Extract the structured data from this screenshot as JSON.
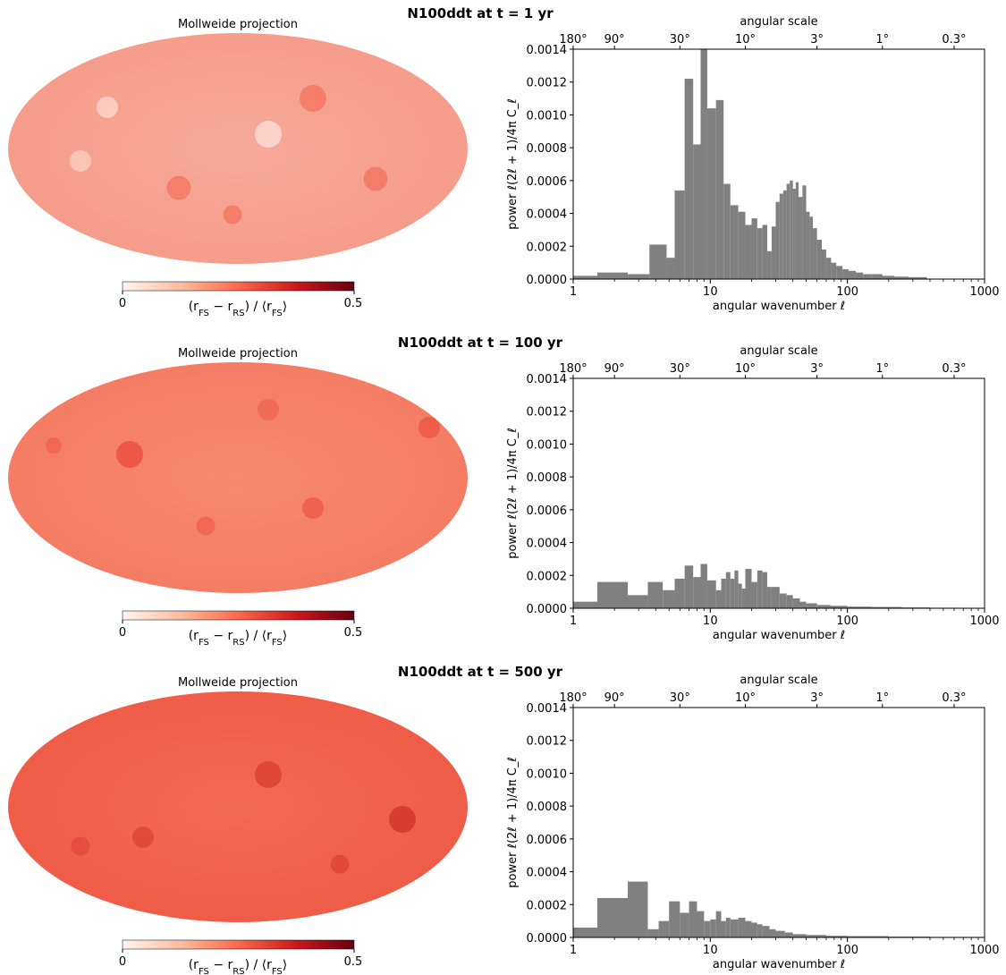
{
  "figure": {
    "map_title": "Mollweide projection",
    "colorbar": {
      "label_html": "(r<tspan baseline-shift=\"sub\" font-size=\"10\">FS</tspan> − r<tspan baseline-shift=\"sub\" font-size=\"10\">RS</tspan>) / ⟨r<tspan baseline-shift=\"sub\" font-size=\"10\">FS</tspan>⟩",
      "min_label": "0",
      "max_label": "0.5",
      "colors": [
        "#fff5f0",
        "#fcbba1",
        "#fb6a4a",
        "#cb181d",
        "#67000d"
      ]
    },
    "bar_color": "#808080"
  },
  "chart_data": [
    {
      "type": "bar",
      "title": "N100ddt at t =    1 yr",
      "map_mean_color": "#f7a99a",
      "xlabel": "angular wavenumber ℓ",
      "ylabel": "power ℓ(2ℓ + 1)/4π C_ℓ",
      "x_scale": "log",
      "xlim": [
        1,
        1000
      ],
      "ylim": [
        0,
        0.0014
      ],
      "x_ticks": [
        "1",
        "10",
        "100",
        "1000"
      ],
      "y_ticks": [
        "0.0000",
        "0.0002",
        "0.0004",
        "0.0006",
        "0.0008",
        "0.0010",
        "0.0012",
        "0.0014"
      ],
      "top_axis": {
        "label": "angular scale",
        "ticks": [
          "180°",
          "90°",
          "30°",
          "10°",
          "3°",
          "1°",
          "0.3°"
        ]
      },
      "bins": [
        [
          1,
          1.5,
          2e-05
        ],
        [
          1.5,
          2.5,
          4e-05
        ],
        [
          2.5,
          3.6,
          3e-05
        ],
        [
          3.6,
          4.8,
          0.00021
        ],
        [
          4.8,
          5.5,
          0.00013
        ],
        [
          5.5,
          6.5,
          0.00054
        ],
        [
          6.5,
          7.5,
          0.00122
        ],
        [
          7.5,
          8.5,
          0.00082
        ],
        [
          8.5,
          9.5,
          0.00142
        ],
        [
          9.5,
          11,
          0.00104
        ],
        [
          11,
          12.5,
          0.00109
        ],
        [
          12.5,
          14,
          0.00058
        ],
        [
          14,
          16,
          0.00045
        ],
        [
          16,
          18,
          0.00041
        ],
        [
          18,
          20,
          0.00033
        ],
        [
          20,
          22,
          0.00037
        ],
        [
          22,
          24,
          0.00031
        ],
        [
          24,
          26,
          0.00033
        ],
        [
          26,
          28,
          0.00017
        ],
        [
          28,
          30,
          0.00032
        ],
        [
          30,
          32,
          0.00047
        ],
        [
          32,
          34,
          0.00052
        ],
        [
          34,
          36,
          0.00054
        ],
        [
          36,
          38,
          0.00058
        ],
        [
          38,
          40,
          0.0006
        ],
        [
          40,
          42,
          0.00055
        ],
        [
          42,
          44,
          0.00059
        ],
        [
          44,
          47,
          0.0005
        ],
        [
          47,
          50,
          0.00057
        ],
        [
          50,
          53,
          0.00041
        ],
        [
          53,
          56,
          0.00038
        ],
        [
          56,
          60,
          0.00031
        ],
        [
          60,
          65,
          0.00024
        ],
        [
          65,
          70,
          0.00018
        ],
        [
          70,
          76,
          0.00013
        ],
        [
          76,
          83,
          0.0001
        ],
        [
          83,
          92,
          8e-05
        ],
        [
          92,
          102,
          6e-05
        ],
        [
          102,
          115,
          5e-05
        ],
        [
          115,
          130,
          4e-05
        ],
        [
          130,
          150,
          3e-05
        ],
        [
          150,
          180,
          3e-05
        ],
        [
          180,
          220,
          2e-05
        ],
        [
          220,
          280,
          1.5e-05
        ],
        [
          280,
          380,
          1.2e-05
        ]
      ]
    },
    {
      "type": "bar",
      "title": "N100ddt at t =  100 yr",
      "map_mean_color": "#f6896f",
      "xlabel": "angular wavenumber ℓ",
      "ylabel": "power ℓ(2ℓ + 1)/4π C_ℓ",
      "x_scale": "log",
      "xlim": [
        1,
        1000
      ],
      "ylim": [
        0,
        0.0014
      ],
      "x_ticks": [
        "1",
        "10",
        "100",
        "1000"
      ],
      "y_ticks": [
        "0.0000",
        "0.0002",
        "0.0004",
        "0.0006",
        "0.0008",
        "0.0010",
        "0.0012",
        "0.0014"
      ],
      "top_axis": {
        "label": "angular scale",
        "ticks": [
          "180°",
          "90°",
          "30°",
          "10°",
          "3°",
          "1°",
          "0.3°"
        ]
      },
      "bins": [
        [
          1,
          1.5,
          4e-05
        ],
        [
          1.5,
          2.5,
          0.00016
        ],
        [
          2.5,
          3.5,
          8e-05
        ],
        [
          3.5,
          4.5,
          0.00016
        ],
        [
          4.5,
          5.5,
          0.00011
        ],
        [
          5.5,
          6.5,
          0.00018
        ],
        [
          6.5,
          7.5,
          0.00026
        ],
        [
          7.5,
          8.5,
          0.00019
        ],
        [
          8.5,
          9.5,
          0.00027
        ],
        [
          9.5,
          11,
          0.00017
        ],
        [
          11,
          12,
          0.00011
        ],
        [
          12,
          13,
          0.00018
        ],
        [
          13,
          14,
          0.00022
        ],
        [
          14,
          15,
          0.00018
        ],
        [
          15,
          16,
          0.00023
        ],
        [
          16,
          17,
          0.00015
        ],
        [
          17,
          18,
          0.00012
        ],
        [
          18,
          20,
          0.00024
        ],
        [
          20,
          22,
          0.00016
        ],
        [
          22,
          24,
          0.00023
        ],
        [
          24,
          26,
          0.00022
        ],
        [
          26,
          28,
          0.00013
        ],
        [
          28,
          32,
          0.00013
        ],
        [
          32,
          36,
          9e-05
        ],
        [
          36,
          40,
          8e-05
        ],
        [
          40,
          45,
          6e-05
        ],
        [
          45,
          50,
          4e-05
        ],
        [
          50,
          60,
          3e-05
        ],
        [
          60,
          75,
          2e-05
        ],
        [
          75,
          100,
          1.5e-05
        ],
        [
          100,
          150,
          1e-05
        ],
        [
          150,
          250,
          8e-06
        ],
        [
          250,
          400,
          5e-06
        ],
        [
          400,
          700,
          3e-06
        ],
        [
          700,
          1000,
          2e-06
        ]
      ]
    },
    {
      "type": "bar",
      "title": "N100ddt at t =  500 yr",
      "map_mean_color": "#f26a55",
      "xlabel": "angular wavenumber ℓ",
      "ylabel": "power ℓ(2ℓ + 1)/4π C_ℓ",
      "x_scale": "log",
      "xlim": [
        1,
        1000
      ],
      "ylim": [
        0,
        0.0014
      ],
      "x_ticks": [
        "1",
        "10",
        "100",
        "1000"
      ],
      "y_ticks": [
        "0.0000",
        "0.0002",
        "0.0004",
        "0.0006",
        "0.0008",
        "0.0010",
        "0.0012",
        "0.0014"
      ],
      "top_axis": {
        "label": "angular scale",
        "ticks": [
          "180°",
          "90°",
          "30°",
          "10°",
          "3°",
          "1°",
          "0.3°"
        ]
      },
      "bins": [
        [
          1,
          1.5,
          6e-05
        ],
        [
          1.5,
          2.5,
          0.00024
        ],
        [
          2.5,
          3.5,
          0.00034
        ],
        [
          3.5,
          4.2,
          5e-05
        ],
        [
          4.2,
          5,
          0.0001
        ],
        [
          5,
          6,
          0.00022
        ],
        [
          6,
          7,
          0.00015
        ],
        [
          7,
          8,
          0.00022
        ],
        [
          8,
          9,
          0.00016
        ],
        [
          9,
          10,
          0.0001
        ],
        [
          10,
          11,
          0.00011
        ],
        [
          11,
          12,
          0.00016
        ],
        [
          12,
          13,
          0.0001
        ],
        [
          13,
          14,
          0.00012
        ],
        [
          14,
          16,
          0.00011
        ],
        [
          16,
          18,
          0.00012
        ],
        [
          18,
          20,
          0.0001
        ],
        [
          20,
          22,
          9e-05
        ],
        [
          22,
          24,
          8e-05
        ],
        [
          24,
          27,
          7e-05
        ],
        [
          27,
          30,
          5e-05
        ],
        [
          30,
          35,
          4e-05
        ],
        [
          35,
          40,
          3e-05
        ],
        [
          40,
          50,
          2e-05
        ],
        [
          50,
          70,
          1.5e-05
        ],
        [
          70,
          100,
          1e-05
        ],
        [
          100,
          200,
          8e-06
        ],
        [
          200,
          400,
          5e-06
        ],
        [
          400,
          1000,
          3e-06
        ]
      ]
    }
  ]
}
